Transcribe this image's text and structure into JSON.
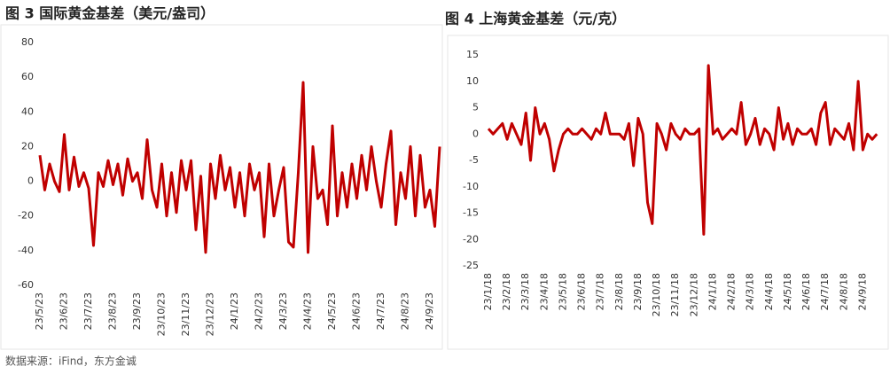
{
  "chart_data": [
    {
      "type": "line",
      "title": "图 3 国际黄金基差（美元/盎司）",
      "categories": [
        "23/5/23",
        null,
        null,
        null,
        null,
        "23/6/23",
        null,
        null,
        null,
        null,
        "23/7/23",
        null,
        null,
        null,
        null,
        "23/8/23",
        null,
        null,
        null,
        null,
        "23/9/23",
        null,
        null,
        null,
        null,
        "23/10/23",
        null,
        null,
        null,
        null,
        "23/11/23",
        null,
        null,
        null,
        null,
        "23/12/23",
        null,
        null,
        null,
        null,
        "24/1/23",
        null,
        null,
        null,
        null,
        "24/2/23",
        null,
        null,
        null,
        null,
        "24/3/23",
        null,
        null,
        null,
        null,
        "24/4/23",
        null,
        null,
        null,
        null,
        "24/5/23",
        null,
        null,
        null,
        null,
        "24/6/23",
        null,
        null,
        null,
        null,
        "24/7/23",
        null,
        null,
        null,
        null,
        "24/8/23",
        null,
        null,
        null,
        null,
        "24/9/23",
        null,
        null
      ],
      "series": [
        {
          "name": "国际黄金基差",
          "color": "#c00000",
          "values": [
            15,
            -5,
            10,
            0,
            -6,
            27,
            -5,
            14,
            -3,
            5,
            -4,
            -37,
            5,
            -3,
            12,
            -2,
            10,
            -8,
            13,
            0,
            5,
            -10,
            24,
            -5,
            -15,
            10,
            -20,
            5,
            -18,
            12,
            -5,
            12,
            -28,
            3,
            -41,
            10,
            -10,
            15,
            -5,
            8,
            -15,
            5,
            -20,
            10,
            -5,
            5,
            -32,
            10,
            -20,
            -5,
            8,
            -35,
            -38,
            5,
            57,
            -41,
            20,
            -10,
            -5,
            -25,
            32,
            -20,
            5,
            -15,
            10,
            -10,
            15,
            -5,
            20,
            0,
            -15,
            10,
            29,
            -25,
            5,
            -10,
            20,
            -20,
            15,
            -15,
            -5,
            -26,
            20
          ]
        }
      ],
      "ylim": [
        -60,
        80
      ],
      "yticks": [
        -60,
        -40,
        -20,
        0,
        20,
        40,
        60,
        80
      ]
    },
    {
      "type": "line",
      "title": "图 4 上海黄金基差（元/克）",
      "categories": [
        "23/1/18",
        null,
        null,
        null,
        "23/2/18",
        null,
        null,
        null,
        "23/3/18",
        null,
        null,
        null,
        "23/4/18",
        null,
        null,
        null,
        "23/5/18",
        null,
        null,
        null,
        "23/6/18",
        null,
        null,
        null,
        "23/7/18",
        null,
        null,
        null,
        "23/8/18",
        null,
        null,
        null,
        "23/9/18",
        null,
        null,
        null,
        "23/10/18",
        null,
        null,
        null,
        "23/11/18",
        null,
        null,
        null,
        "23/12/18",
        null,
        null,
        null,
        "24/1/18",
        null,
        null,
        null,
        "24/2/18",
        null,
        null,
        null,
        "24/3/18",
        null,
        null,
        null,
        "24/4/18",
        null,
        null,
        null,
        "24/5/18",
        null,
        null,
        null,
        "24/6/18",
        null,
        null,
        null,
        "24/7/18",
        null,
        null,
        null,
        "24/8/18",
        null,
        null,
        null,
        "24/9/18",
        null,
        null,
        null
      ],
      "series": [
        {
          "name": "上海黄金基差",
          "color": "#c00000",
          "values": [
            1,
            0,
            1,
            2,
            -1,
            2,
            0,
            -2,
            4,
            -5,
            5,
            0,
            2,
            -1,
            -7,
            -3,
            0,
            1,
            0,
            0,
            1,
            0,
            -1,
            1,
            0,
            4,
            0,
            0,
            0,
            -1,
            2,
            -6,
            3,
            0,
            -13,
            -17,
            2,
            0,
            -3,
            2,
            0,
            -1,
            1,
            0,
            0,
            1,
            -19,
            13,
            0,
            1,
            -1,
            0,
            1,
            0,
            6,
            -2,
            0,
            3,
            -2,
            1,
            0,
            -3,
            5,
            -1,
            2,
            -2,
            1,
            0,
            0,
            1,
            -2,
            4,
            6,
            -2,
            1,
            0,
            -1,
            2,
            -3,
            10,
            -3,
            0,
            -1,
            0
          ]
        }
      ],
      "ylim": [
        -25,
        15
      ],
      "yticks": [
        -25,
        -20,
        -15,
        -10,
        -5,
        0,
        5,
        10,
        15
      ]
    }
  ],
  "source": "数据来源：iFind，东方金诚"
}
